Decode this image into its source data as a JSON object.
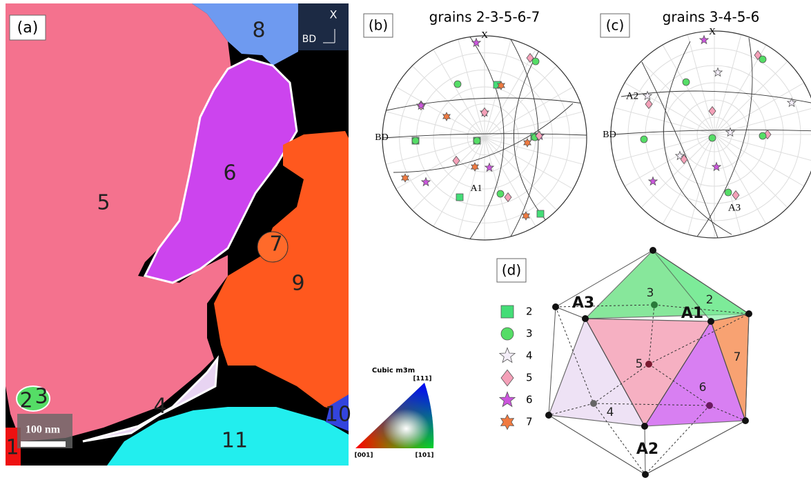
{
  "panel_a": {
    "label": "(a)",
    "grains": [
      "8",
      "6",
      "5",
      "7",
      "9",
      "4",
      "2",
      "3",
      "1",
      "10",
      "11"
    ],
    "axis_x": "X",
    "axis_bd": "BD",
    "scale": "100 nm"
  },
  "panel_b": {
    "label": "(b)",
    "title": "grains 2-3-5-6-7",
    "x": "X",
    "bd": "BD",
    "a1": "A1"
  },
  "panel_c": {
    "label": "(c)",
    "title": "grains 3-4-5-6",
    "x": "X",
    "bd": "BD",
    "a2": "A2",
    "a3": "A3"
  },
  "color_key": {
    "title": "Cubic m3m",
    "top": "[111]",
    "left": "[001]",
    "right": "[101]"
  },
  "panel_d": {
    "label": "(d)",
    "legend": [
      "2",
      "3",
      "4",
      "5",
      "6",
      "7"
    ],
    "faces": [
      "3",
      "2",
      "5",
      "7",
      "6",
      "4"
    ],
    "a1": "A1",
    "a2": "A2",
    "a3": "A3"
  }
}
